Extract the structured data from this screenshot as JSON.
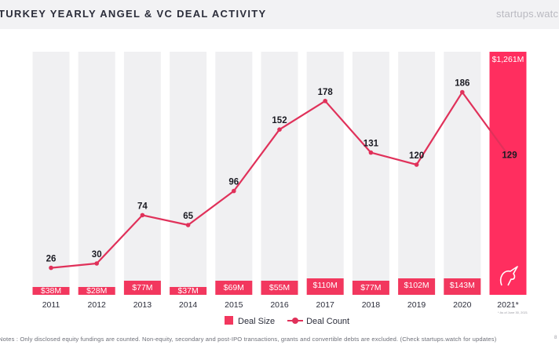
{
  "header": {
    "title": "TURKEY YEARLY ANGEL & VC DEAL ACTIVITY",
    "brand": "startups.watch"
  },
  "legend": {
    "bar_label": "Deal Size",
    "line_label": "Deal Count"
  },
  "footnote": "* As of June 30, 2021",
  "notes": "Notes : Only disclosed equity fundings are counted. Non-equity, secondary and post-IPO transactions, grants and convertible debts are excluded. (Check startups.watch for updates)",
  "page_number": "8",
  "chart_data": {
    "type": "bar",
    "title": "TURKEY YEARLY ANGEL & VC DEAL ACTIVITY",
    "categories": [
      "2011",
      "2012",
      "2013",
      "2014",
      "2015",
      "2016",
      "2017",
      "2018",
      "2019",
      "2020",
      "2021*"
    ],
    "series": [
      {
        "name": "Deal Size",
        "type": "bar",
        "values": [
          38,
          28,
          77,
          37,
          69,
          55,
          110,
          77,
          102,
          143,
          1261
        ],
        "labels": [
          "$38M",
          "$28M",
          "$77M",
          "$37M",
          "$69M",
          "$55M",
          "$110M",
          "$77M",
          "$102M",
          "$143M",
          "$1,261M"
        ],
        "color": "#f2375e",
        "highlight_color": "#ff2e5f"
      },
      {
        "name": "Deal Count",
        "type": "line",
        "values": [
          26,
          30,
          74,
          65,
          96,
          152,
          178,
          131,
          120,
          186,
          129
        ],
        "color": "#e0315a"
      }
    ],
    "background_bar_color": "#f0f0f2",
    "label_color": "#1a1a22",
    "grid": false,
    "legend_position": "bottom-center"
  }
}
